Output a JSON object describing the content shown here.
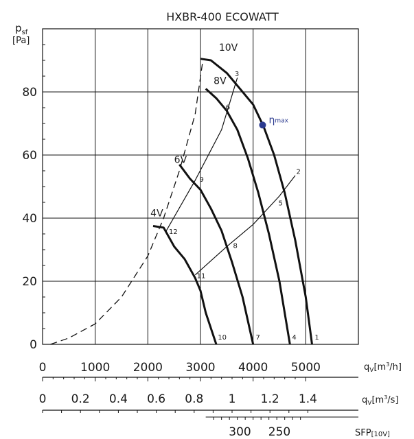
{
  "chart_data": {
    "type": "line",
    "title": "HXBR-400 ECOWATT",
    "ylabel": {
      "main": "p",
      "sub": "sf",
      "unit": "[Pa]"
    },
    "xlabel_flow_h": {
      "main": "q",
      "sub": "V",
      "unit_pre": "[m",
      "unit_sup": "3",
      "unit_post": "/h]"
    },
    "xlabel_flow_s": {
      "main": "q",
      "sub": "V",
      "unit_pre": "[m",
      "unit_sup": "3",
      "unit_post": "/s]"
    },
    "xlabel_sfp": {
      "main": "SFP",
      "sub": "[10V]"
    },
    "xlim": [
      0,
      6000
    ],
    "ylim": [
      0,
      100
    ],
    "grid": true,
    "x_ticks_flow_h": [
      {
        "value": 0,
        "label": "0"
      },
      {
        "value": 1000,
        "label": "1000"
      },
      {
        "value": 2000,
        "label": "2000"
      },
      {
        "value": 3000,
        "label": "3000"
      },
      {
        "value": 4000,
        "label": "4000"
      },
      {
        "value": 5000,
        "label": "5000"
      }
    ],
    "x_ticks_flow_s": [
      {
        "value": 0,
        "label": "0"
      },
      {
        "value": 0.2,
        "label": "0.2"
      },
      {
        "value": 0.4,
        "label": "0.4"
      },
      {
        "value": 0.6,
        "label": "0.6"
      },
      {
        "value": 0.8,
        "label": "0.8"
      },
      {
        "value": 1,
        "label": "1"
      },
      {
        "value": 1.2,
        "label": "1.2"
      },
      {
        "value": 1.4,
        "label": "1.4"
      }
    ],
    "sfp_ticks": [
      {
        "flow_h": 3750,
        "label": "300"
      },
      {
        "flow_h": 4500,
        "label": "250"
      }
    ],
    "y_ticks": [
      {
        "value": 0,
        "label": "0"
      },
      {
        "value": 20,
        "label": "20"
      },
      {
        "value": 40,
        "label": "40"
      },
      {
        "value": 60,
        "label": "60"
      },
      {
        "value": 80,
        "label": "80"
      }
    ],
    "series": [
      {
        "name": "10V",
        "label_at": [
          3350,
          93
        ],
        "points": [
          [
            3000,
            90.5
          ],
          [
            3200,
            90
          ],
          [
            3500,
            86
          ],
          [
            3700,
            82
          ],
          [
            4000,
            76
          ],
          [
            4200,
            69
          ],
          [
            4400,
            60
          ],
          [
            4600,
            48
          ],
          [
            4800,
            33
          ],
          [
            5000,
            15
          ],
          [
            5120,
            0
          ]
        ]
      },
      {
        "name": "8V",
        "label_at": [
          3250,
          82.5
        ],
        "points": [
          [
            3100,
            81
          ],
          [
            3300,
            78
          ],
          [
            3500,
            74
          ],
          [
            3700,
            68
          ],
          [
            3900,
            59
          ],
          [
            4100,
            48
          ],
          [
            4300,
            35
          ],
          [
            4500,
            20
          ],
          [
            4700,
            0
          ]
        ]
      },
      {
        "name": "6V",
        "label_at": [
          2500,
          57.5
        ],
        "points": [
          [
            2600,
            57
          ],
          [
            2800,
            52.5
          ],
          [
            3000,
            49
          ],
          [
            3200,
            43
          ],
          [
            3400,
            36
          ],
          [
            3600,
            26
          ],
          [
            3800,
            15
          ],
          [
            4000,
            0
          ]
        ]
      },
      {
        "name": "4V",
        "label_at": [
          2050,
          40.5
        ],
        "points": [
          [
            2100,
            37.5
          ],
          [
            2300,
            37
          ],
          [
            2500,
            31
          ],
          [
            2700,
            27
          ],
          [
            2900,
            21
          ],
          [
            3000,
            17
          ],
          [
            3100,
            10
          ],
          [
            3300,
            0
          ]
        ]
      }
    ],
    "system_curves": [
      {
        "points": [
          [
            2900,
            22
          ],
          [
            3500,
            31
          ],
          [
            4000,
            38
          ],
          [
            4500,
            47
          ],
          [
            4800,
            53.5
          ]
        ]
      },
      {
        "points": [
          [
            2350,
            36
          ],
          [
            2900,
            52
          ],
          [
            3400,
            68
          ],
          [
            3700,
            84.5
          ]
        ]
      }
    ],
    "envelope_dashed": {
      "points": [
        [
          150,
          0
        ],
        [
          500,
          2
        ],
        [
          1000,
          6.5
        ],
        [
          1500,
          15
        ],
        [
          2000,
          28
        ],
        [
          2300,
          40
        ],
        [
          2600,
          55
        ],
        [
          2900,
          73
        ],
        [
          3050,
          90.5
        ]
      ]
    },
    "point_labels": [
      {
        "label": "1",
        "x": 5170,
        "y": 1.5
      },
      {
        "label": "2",
        "x": 4820,
        "y": 54
      },
      {
        "label": "3",
        "x": 3650,
        "y": 85
      },
      {
        "label": "4",
        "x": 4740,
        "y": 1.5
      },
      {
        "label": "5",
        "x": 4480,
        "y": 44
      },
      {
        "label": "6",
        "x": 3480,
        "y": 74.5
      },
      {
        "label": "7",
        "x": 4050,
        "y": 1.5
      },
      {
        "label": "8",
        "x": 3620,
        "y": 30.5
      },
      {
        "label": "9",
        "x": 2980,
        "y": 51.5
      },
      {
        "label": "10",
        "x": 3330,
        "y": 1.5
      },
      {
        "label": "11",
        "x": 2930,
        "y": 21
      },
      {
        "label": "12",
        "x": 2400,
        "y": 35
      }
    ],
    "eta_max": {
      "label": "η",
      "sub": "max",
      "x": 4180,
      "y": 69.5,
      "color": "#2b3a8f"
    }
  }
}
